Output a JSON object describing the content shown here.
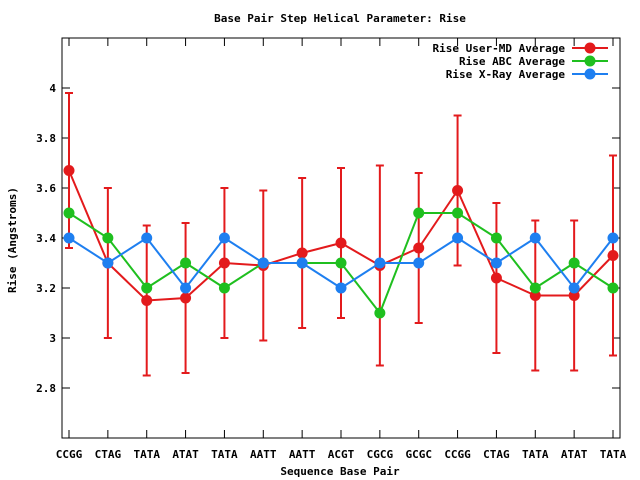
{
  "chart_data": {
    "type": "line",
    "title": "Base Pair Step Helical Parameter: Rise",
    "xlabel": "Sequence Base Pair",
    "ylabel": "Rise (Angstroms)",
    "categories": [
      "CCGG",
      "CTAG",
      "TATA",
      "ATAT",
      "TATA",
      "AATT",
      "AATT",
      "ACGT",
      "CGCG",
      "GCGC",
      "CCGG",
      "CTAG",
      "TATA",
      "ATAT",
      "TATA"
    ],
    "ylim": [
      2.6,
      4.2
    ],
    "yticks": [
      2.8,
      3,
      3.2,
      3.4,
      3.6,
      3.8,
      4
    ],
    "ytick_labels": [
      "2.8",
      "3",
      "3.2",
      "3.4",
      "3.6",
      "3.8",
      "4"
    ],
    "legend_position": "top-right",
    "grid": false,
    "series": [
      {
        "name": "Rise User-MD Average",
        "color": "#e31a1c",
        "values": [
          3.67,
          3.3,
          3.15,
          3.16,
          3.3,
          3.29,
          3.34,
          3.38,
          3.29,
          3.36,
          3.59,
          3.24,
          3.17,
          3.17,
          3.33
        ],
        "error": [
          0.31,
          0.3,
          0.3,
          0.3,
          0.3,
          0.3,
          0.3,
          0.3,
          0.4,
          0.3,
          0.3,
          0.3,
          0.3,
          0.3,
          0.4
        ]
      },
      {
        "name": "Rise ABC Average",
        "color": "#1fbf1f",
        "values": [
          3.5,
          3.4,
          3.2,
          3.3,
          3.2,
          3.3,
          3.3,
          3.3,
          3.1,
          3.5,
          3.5,
          3.4,
          3.2,
          3.3,
          3.2
        ]
      },
      {
        "name": "Rise X-Ray Average",
        "color": "#1e7ff0",
        "values": [
          3.4,
          3.3,
          3.4,
          3.2,
          3.4,
          3.3,
          3.3,
          3.2,
          3.3,
          3.3,
          3.4,
          3.3,
          3.4,
          3.2,
          3.4
        ]
      }
    ]
  }
}
